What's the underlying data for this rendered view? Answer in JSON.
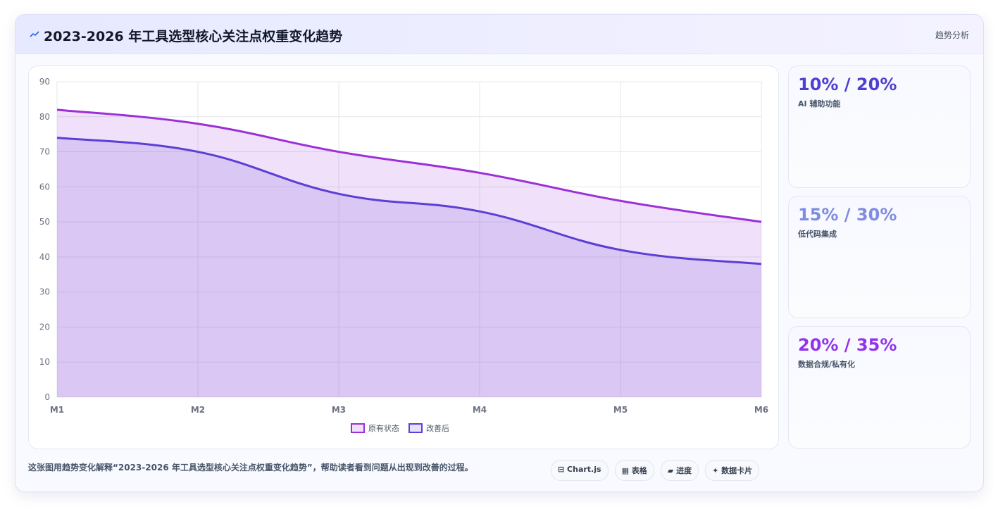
{
  "header": {
    "title": "2023-2026 年工具选型核心关注点权重变化趋势",
    "tag": "趋势分析"
  },
  "chart_data": {
    "type": "area",
    "categories": [
      "M1",
      "M2",
      "M3",
      "M4",
      "M5",
      "M6"
    ],
    "series": [
      {
        "name": "原有状态",
        "color": "#9b30d9",
        "values": [
          82,
          78,
          70,
          64,
          56,
          50
        ]
      },
      {
        "name": "改善后",
        "color": "#5b3fd6",
        "values": [
          74,
          70,
          58,
          53,
          42,
          38
        ]
      }
    ],
    "ylim": [
      0,
      90
    ],
    "yticks": [
      0,
      10,
      20,
      30,
      40,
      50,
      60,
      70,
      80,
      90
    ],
    "grid": true,
    "legend": "bottom"
  },
  "cards": [
    {
      "value": "10% / 20%",
      "label": "AI 辅助功能",
      "color": "#4f3fd0"
    },
    {
      "value": "15% / 30%",
      "label": "低代码集成",
      "color": "#7f8ce0"
    },
    {
      "value": "20% / 35%",
      "label": "数据合规/私有化",
      "color": "#9333ea"
    }
  ],
  "footer": {
    "text": "这张图用趋势变化解释“2023-2026 年工具选型核心关注点权重变化趋势”，帮助读者看到问题从出现到改善的过程。",
    "buttons": [
      "⊟ Chart.js",
      "▦ 表格",
      "▰ 进度",
      "✦ 数据卡片"
    ]
  }
}
